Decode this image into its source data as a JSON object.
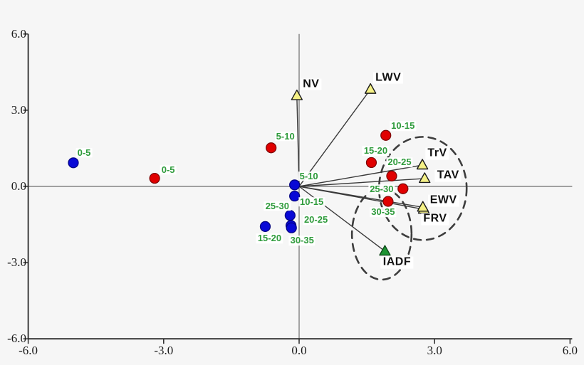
{
  "figure": {
    "background": "#f6f6f6",
    "axis_color": "#2b2b2b",
    "zero_line_color": "#6e6e6e",
    "vector_line_color": "#3a3a3a",
    "ellipse_color": "#3d3d3d",
    "point_label_color": "#2e9b3b"
  },
  "chart_data": {
    "type": "scatter",
    "subtype": "pca-biplot",
    "title": "",
    "xlabel": "",
    "ylabel": "",
    "xlim": [
      -6.0,
      6.0
    ],
    "ylim": [
      -6.0,
      6.0
    ],
    "grid": false,
    "x_ticks": {
      "values": [
        -6,
        -3,
        0,
        3,
        6
      ],
      "labels": [
        "-6.0",
        "-3.0",
        "0.0",
        "3.0",
        "6.0"
      ]
    },
    "y_ticks": {
      "values": [
        -6,
        -3,
        0,
        3,
        6
      ],
      "labels": [
        "-6.0",
        "-3.0",
        "0.0",
        "3.0",
        "6.0"
      ]
    },
    "series": [
      {
        "name": "age-classes-blue",
        "marker": "circle",
        "fill": "#0909d6",
        "edge": "#000080",
        "points": [
          {
            "label": "0-5",
            "x": -5.0,
            "y": 0.93,
            "label_offset": [
              15,
              -14
            ]
          },
          {
            "label": "5-10",
            "x": -0.1,
            "y": 0.06,
            "label_offset": [
              20,
              -12
            ]
          },
          {
            "label": "10-15",
            "x": -0.1,
            "y": -0.38,
            "label_offset": [
              24,
              8
            ]
          },
          {
            "label": "15-20",
            "x": -0.75,
            "y": -1.58,
            "label_offset": [
              6,
              17
            ]
          },
          {
            "label": "20-25",
            "x": -0.18,
            "y": -1.54,
            "label_offset": [
              35,
              -8
            ]
          },
          {
            "label": "25-30",
            "x": -0.2,
            "y": -1.14,
            "label_offset": [
              -18,
              -13
            ]
          },
          {
            "label": "30-35",
            "x": -0.17,
            "y": -1.63,
            "label_offset": [
              15,
              18
            ]
          }
        ]
      },
      {
        "name": "age-classes-red",
        "marker": "circle",
        "fill": "#e00000",
        "edge": "#7a0000",
        "points": [
          {
            "label": "0-5",
            "x": -3.2,
            "y": 0.32,
            "label_offset": [
              19,
              -12
            ]
          },
          {
            "label": "5-10",
            "x": -0.62,
            "y": 1.52,
            "label_offset": [
              20,
              -16
            ]
          },
          {
            "label": "10-15",
            "x": 1.92,
            "y": 2.01,
            "label_offset": [
              24,
              -13
            ]
          },
          {
            "label": "15-20",
            "x": 1.6,
            "y": 0.94,
            "label_offset": [
              6,
              -16
            ]
          },
          {
            "label": "20-25",
            "x": 2.05,
            "y": 0.41,
            "label_offset": [
              11,
              -19
            ]
          },
          {
            "label": "25-30",
            "x": 2.3,
            "y": -0.09,
            "label_offset": [
              -30,
              1
            ]
          },
          {
            "label": "30-35",
            "x": 1.97,
            "y": -0.59,
            "label_offset": [
              -7,
              15
            ]
          }
        ]
      }
    ],
    "vectors": {
      "origin": [
        0,
        0
      ],
      "items": [
        {
          "label": "NV",
          "x": -0.05,
          "y": 3.57,
          "marker_fill": "#f5f186",
          "marker_edge": "#1a1a1a",
          "label_offset": [
            20,
            -16
          ]
        },
        {
          "label": "LWV",
          "x": 1.58,
          "y": 3.82,
          "marker_fill": "#f5f186",
          "marker_edge": "#1a1a1a",
          "label_offset": [
            25,
            -16
          ]
        },
        {
          "label": "TrV",
          "x": 2.73,
          "y": 0.84,
          "marker_fill": "#f5f186",
          "marker_edge": "#1a1a1a",
          "label_offset": [
            21,
            -16
          ]
        },
        {
          "label": "TAV",
          "x": 2.78,
          "y": 0.31,
          "marker_fill": "#f5f186",
          "marker_edge": "#1a1a1a",
          "label_offset": [
            33,
            -4
          ]
        },
        {
          "label": "FRV",
          "x": 2.76,
          "y": -0.9,
          "marker_fill": "#f5f186",
          "marker_edge": "#1a1a1a",
          "label_offset": [
            16,
            14
          ]
        },
        {
          "label": "EWV",
          "x": 2.74,
          "y": -0.82,
          "marker_fill": "#f5f186",
          "marker_edge": "#1a1a1a",
          "label_offset": [
            29,
            -9
          ]
        },
        {
          "label": "IADF",
          "x": 1.9,
          "y": -2.55,
          "marker_fill": "#1e9433",
          "marker_edge": "#0e4a1a",
          "label_offset": [
            17,
            16
          ]
        }
      ]
    },
    "ellipses": [
      {
        "name": "group-ellipse-vectors",
        "cx": 2.74,
        "cy": -0.08,
        "rx": 0.97,
        "ry": 2.03
      },
      {
        "name": "group-ellipse-iadf",
        "cx": 1.83,
        "cy": -1.88,
        "rx": 0.66,
        "ry": 1.79
      }
    ]
  }
}
